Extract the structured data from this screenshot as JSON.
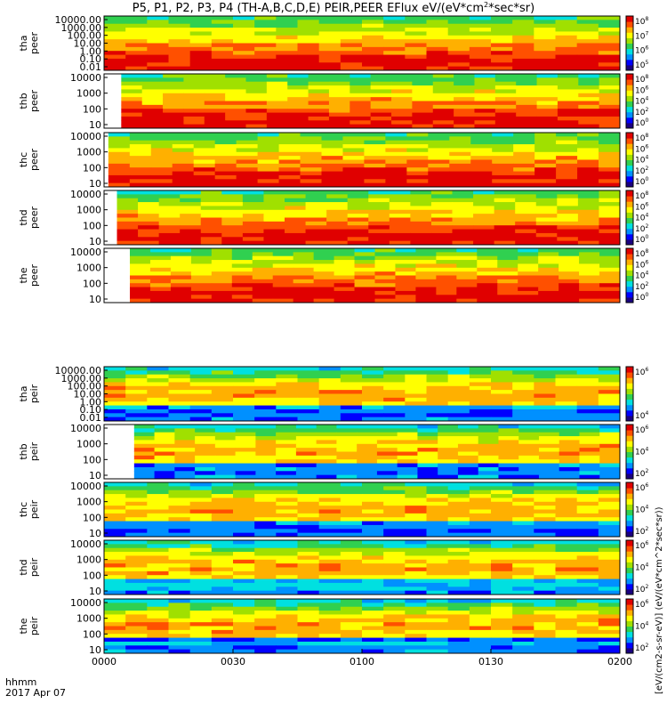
{
  "chart_data": {
    "type": "heatmap",
    "title": "P5, P1, P2, P3, P4 (TH-A,B,C,D,E) PEIR,PEER EFlux eV/(eV*cm",
    "title_sup": "2",
    "title_end": "*sec*sr)",
    "x_axis": {
      "label_line1": "hhmm",
      "label_line2": "2017 Apr 07",
      "range": [
        "00:00",
        "02:00"
      ],
      "tick_labels": [
        "0000",
        "0030",
        "0100",
        "0130",
        "0200"
      ]
    },
    "colorbar_label": "[eV/(cm2-s-sr-eV)] (eV/(eV*cm^2*sec*sr))",
    "panels": [
      {
        "probe": "tha",
        "species": "peer",
        "y_ticks": [
          "10000.00",
          "1000.00",
          "100.00",
          "10.00",
          "1.00",
          "0.10",
          "0.01"
        ],
        "cbar_ticks": [
          "10",
          "10",
          "10",
          "10"
        ],
        "cbar_exp": [
          "8",
          "7",
          "6",
          "5"
        ],
        "data_start_min": 0
      },
      {
        "probe": "thb",
        "species": "peer",
        "y_ticks": [
          "10000",
          "1000",
          "100",
          "10"
        ],
        "cbar_ticks": [
          "10",
          "10",
          "10",
          "10",
          "10"
        ],
        "cbar_exp": [
          "8",
          "6",
          "4",
          "2",
          "0"
        ],
        "data_start_min": 4
      },
      {
        "probe": "thc",
        "species": "peer",
        "y_ticks": [
          "10000",
          "1000",
          "100",
          "10"
        ],
        "cbar_ticks": [
          "10",
          "10",
          "10",
          "10",
          "10"
        ],
        "cbar_exp": [
          "8",
          "6",
          "4",
          "2",
          "0"
        ],
        "data_start_min": 1
      },
      {
        "probe": "thd",
        "species": "peer",
        "y_ticks": [
          "10000",
          "1000",
          "100",
          "10"
        ],
        "cbar_ticks": [
          "10",
          "10",
          "10",
          "10",
          "10"
        ],
        "cbar_exp": [
          "8",
          "6",
          "4",
          "2",
          "0"
        ],
        "data_start_min": 3
      },
      {
        "probe": "the",
        "species": "peer",
        "y_ticks": [
          "10000",
          "1000",
          "100",
          "10"
        ],
        "cbar_ticks": [
          "10",
          "10",
          "10",
          "10",
          "10"
        ],
        "cbar_exp": [
          "8",
          "6",
          "4",
          "2",
          "0"
        ],
        "data_start_min": 6
      },
      {
        "probe": "tha",
        "species": "peir",
        "y_ticks": [
          "10000.00",
          "1000.00",
          "100.00",
          "10.00",
          "1.00",
          "0.10",
          "0.01"
        ],
        "cbar_ticks": [
          "10",
          "10"
        ],
        "cbar_exp": [
          "6",
          "4"
        ],
        "data_start_min": 0
      },
      {
        "probe": "thb",
        "species": "peir",
        "y_ticks": [
          "10000",
          "1000",
          "100",
          "10"
        ],
        "cbar_ticks": [
          "10",
          "10",
          "10"
        ],
        "cbar_exp": [
          "6",
          "4",
          "2"
        ],
        "data_start_min": 7
      },
      {
        "probe": "thc",
        "species": "peir",
        "y_ticks": [
          "10000",
          "1000",
          "100",
          "10"
        ],
        "cbar_ticks": [
          "10",
          "10",
          "10"
        ],
        "cbar_exp": [
          "6",
          "4",
          "2"
        ],
        "data_start_min": 0
      },
      {
        "probe": "thd",
        "species": "peir",
        "y_ticks": [
          "10000",
          "1000",
          "100",
          "10"
        ],
        "cbar_ticks": [
          "10",
          "10",
          "10"
        ],
        "cbar_exp": [
          "6",
          "4",
          "2"
        ],
        "data_start_min": 0
      },
      {
        "probe": "the",
        "species": "peir",
        "y_ticks": [
          "10000",
          "1000",
          "100",
          "10"
        ],
        "cbar_ticks": [
          "10",
          "10",
          "10"
        ],
        "cbar_exp": [
          "6",
          "4",
          "2"
        ],
        "data_start_min": 0
      }
    ],
    "colormap": [
      "#1a0080",
      "#0000ff",
      "#0090ff",
      "#00e0e0",
      "#30d050",
      "#a0e000",
      "#ffff00",
      "#ffb000",
      "#ff5000",
      "#e00000"
    ]
  }
}
